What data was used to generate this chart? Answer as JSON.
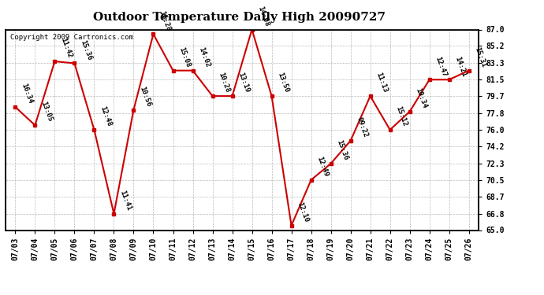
{
  "title": "Outdoor Temperature Daily High 20090727",
  "copyright": "Copyright 2009 Cartronics.com",
  "dates": [
    "07/03",
    "07/04",
    "07/05",
    "07/06",
    "07/07",
    "07/08",
    "07/09",
    "07/10",
    "07/11",
    "07/12",
    "07/13",
    "07/14",
    "07/15",
    "07/16",
    "07/17",
    "07/18",
    "07/19",
    "07/20",
    "07/21",
    "07/22",
    "07/23",
    "07/24",
    "07/25",
    "07/26"
  ],
  "values": [
    78.5,
    76.5,
    83.5,
    83.3,
    76.0,
    66.8,
    78.2,
    86.5,
    82.5,
    82.5,
    79.7,
    79.7,
    87.0,
    79.7,
    65.5,
    70.5,
    72.3,
    74.8,
    79.7,
    76.0,
    78.0,
    81.5,
    81.5,
    82.5
  ],
  "times": [
    "16:34",
    "13:05",
    "11:42",
    "15:36",
    "12:48",
    "11:41",
    "10:56",
    "16:28",
    "15:08",
    "14:02",
    "10:28",
    "13:19",
    "14:08",
    "13:50",
    "12:10",
    "12:49",
    "15:36",
    "09:22",
    "11:13",
    "15:12",
    "10:34",
    "12:47",
    "14:21",
    "15:31"
  ],
  "ylim": [
    65.0,
    87.0
  ],
  "yticks": [
    65.0,
    66.8,
    68.7,
    70.5,
    72.3,
    74.2,
    76.0,
    77.8,
    79.7,
    81.5,
    83.3,
    85.2,
    87.0
  ],
  "line_color": "#cc0000",
  "marker_color": "#cc0000",
  "bg_color": "#ffffff",
  "grid_color": "#bbbbbb",
  "title_fontsize": 11,
  "label_fontsize": 6.5,
  "copyright_fontsize": 6.5,
  "tick_fontsize": 7
}
